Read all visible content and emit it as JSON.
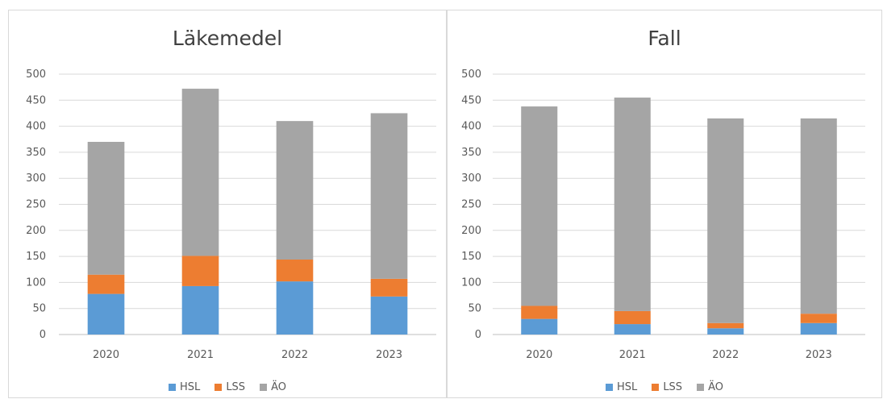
{
  "chart_data": [
    {
      "type": "bar",
      "stacked": true,
      "title": "Läkemedel",
      "categories": [
        "2020",
        "2021",
        "2022",
        "2023"
      ],
      "ylim": [
        0,
        500
      ],
      "yticks": [
        "0",
        "50",
        "100",
        "150",
        "200",
        "250",
        "300",
        "350",
        "400",
        "450",
        "500"
      ],
      "grid": true,
      "legend_position": "bottom",
      "series": [
        {
          "name": "HSL",
          "color": "#5b9bd5",
          "values": [
            78,
            93,
            102,
            73
          ]
        },
        {
          "name": "LSS",
          "color": "#ed7d31",
          "values": [
            37,
            58,
            42,
            34
          ]
        },
        {
          "name": "ÄO",
          "color": "#a5a5a5",
          "values": [
            255,
            321,
            266,
            318
          ]
        }
      ]
    },
    {
      "type": "bar",
      "stacked": true,
      "title": "Fall",
      "categories": [
        "2020",
        "2021",
        "2022",
        "2023"
      ],
      "ylim": [
        0,
        500
      ],
      "yticks": [
        "0",
        "50",
        "100",
        "150",
        "200",
        "250",
        "300",
        "350",
        "400",
        "450",
        "500"
      ],
      "grid": true,
      "legend_position": "bottom",
      "series": [
        {
          "name": "HSL",
          "color": "#5b9bd5",
          "values": [
            30,
            20,
            12,
            22
          ]
        },
        {
          "name": "LSS",
          "color": "#ed7d31",
          "values": [
            25,
            25,
            10,
            18
          ]
        },
        {
          "name": "ÄO",
          "color": "#a5a5a5",
          "values": [
            383,
            410,
            393,
            375
          ]
        }
      ]
    }
  ]
}
